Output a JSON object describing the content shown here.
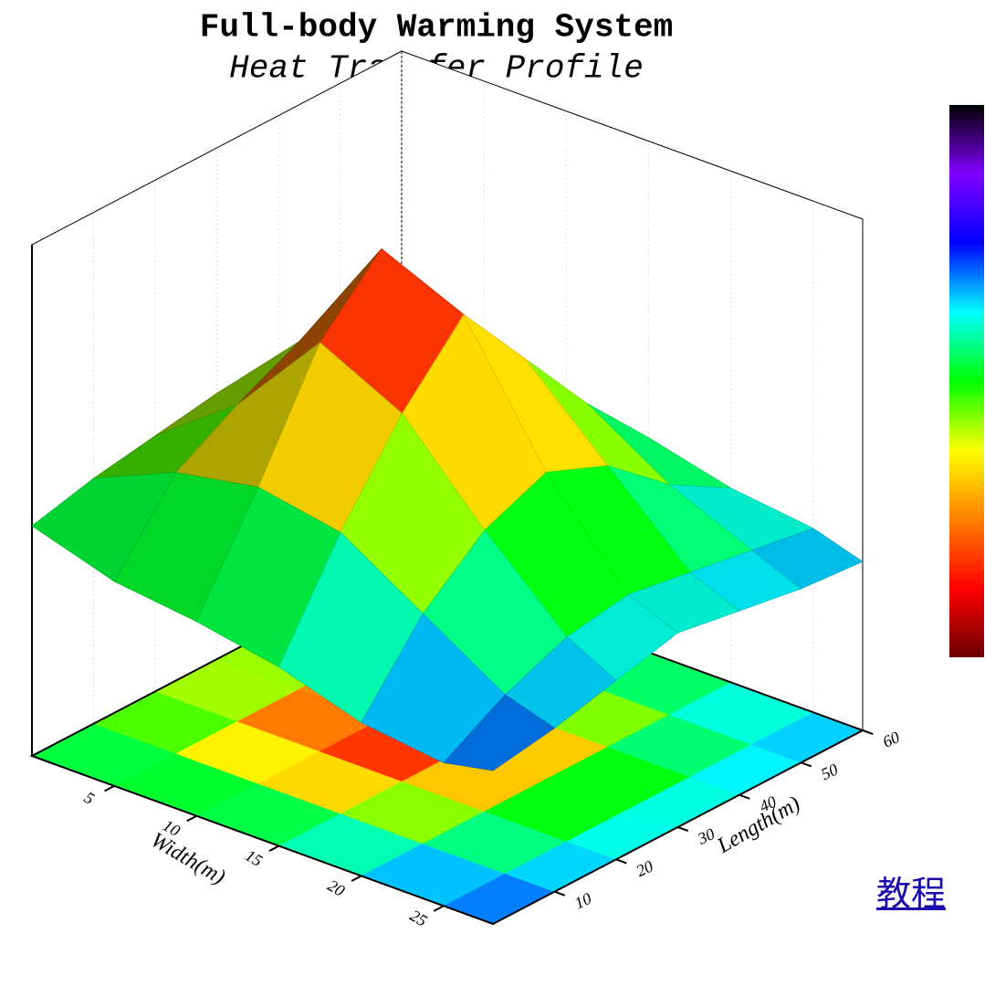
{
  "chart_data": {
    "type": "surface3d",
    "title": "Full-body Warming System",
    "subtitle": "Heat Transfer Profile",
    "x_label": "Width(m)",
    "y_label": "Length(m)",
    "x": [
      0,
      5,
      10,
      15,
      20,
      25,
      28
    ],
    "y": [
      0,
      10,
      20,
      30,
      40,
      50,
      60
    ],
    "z": [
      [
        45,
        48,
        50,
        52,
        50,
        47,
        45
      ],
      [
        40,
        55,
        62,
        68,
        60,
        52,
        46
      ],
      [
        38,
        58,
        80,
        92,
        75,
        58,
        45
      ],
      [
        35,
        55,
        72,
        85,
        70,
        55,
        42
      ],
      [
        30,
        45,
        55,
        60,
        55,
        45,
        38
      ],
      [
        28,
        35,
        40,
        42,
        40,
        38,
        36
      ],
      [
        30,
        32,
        35,
        38,
        36,
        34,
        33
      ]
    ],
    "xlim": [
      0,
      28
    ],
    "ylim": [
      0,
      60
    ],
    "zlim": [
      0,
      100
    ],
    "xticks": [
      5,
      10,
      15,
      20,
      25
    ],
    "yticks": [
      10,
      20,
      30,
      40,
      50,
      60
    ],
    "grid": true,
    "colormap": [
      "#6b0000",
      "#ff0000",
      "#ff8000",
      "#ffff00",
      "#00ff00",
      "#00ffff",
      "#0000ff",
      "#8000ff",
      "#000000"
    ]
  },
  "link": "教程"
}
